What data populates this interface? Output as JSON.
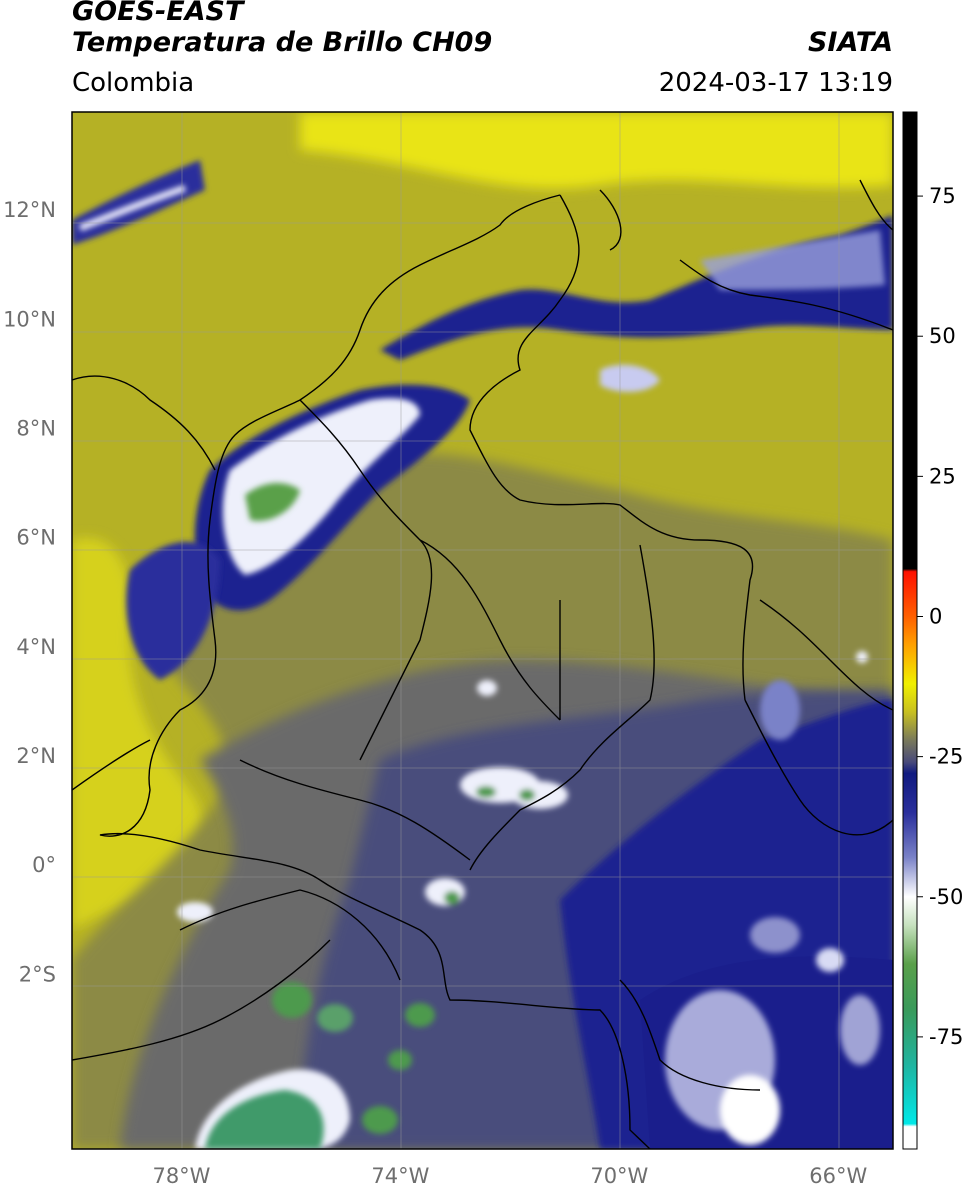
{
  "header": {
    "satellite": "GOES-EAST",
    "product": "Temperatura de Brillo CH09",
    "institution": "SIATA",
    "region": "Colombia",
    "datetime": "2024-03-17 13:19"
  },
  "map": {
    "lat_range": [
      -5.2,
      13.8
    ],
    "lon_range": [
      -80,
      -65
    ],
    "lat_ticks": [
      {
        "value": 12,
        "label": "12°N"
      },
      {
        "value": 10,
        "label": "10°N"
      },
      {
        "value": 8,
        "label": "8°N"
      },
      {
        "value": 6,
        "label": "6°N"
      },
      {
        "value": 4,
        "label": "4°N"
      },
      {
        "value": 2,
        "label": "2°N"
      },
      {
        "value": 0,
        "label": "0°"
      },
      {
        "value": -2,
        "label": "2°S"
      }
    ],
    "lon_ticks": [
      {
        "value": -78,
        "label": "78°W"
      },
      {
        "value": -74,
        "label": "74°W"
      },
      {
        "value": -70,
        "label": "70°W"
      },
      {
        "value": -66,
        "label": "66°W"
      }
    ],
    "gridlines": true,
    "colors": {
      "warm_background": "#b5b125",
      "coast_band": "#d4cf1e",
      "north_yellow": "#f2ee0a",
      "mid_olive": "#8a8a3e",
      "grey": "#6a6a68",
      "blue_grey": "#4a4f7a",
      "deep_blue": "#1e2390",
      "white": "#f4f4fb",
      "green": "#4e9a4e",
      "boundaries": "#000000"
    }
  },
  "colorbar": {
    "range": [
      -95,
      90
    ],
    "ticks": [
      {
        "value": 75,
        "label": "75"
      },
      {
        "value": 50,
        "label": "50"
      },
      {
        "value": 25,
        "label": "25"
      },
      {
        "value": 0,
        "label": "0"
      },
      {
        "value": -25,
        "label": "-25"
      },
      {
        "value": -50,
        "label": "-50"
      },
      {
        "value": -75,
        "label": "-75"
      }
    ],
    "stops": [
      {
        "value": -95,
        "color": "#ffffff"
      },
      {
        "value": -91,
        "color": "#ffffff"
      },
      {
        "value": -90.5,
        "color": "#00e8e8"
      },
      {
        "value": -80,
        "color": "#20b4a0"
      },
      {
        "value": -70,
        "color": "#3a9a5a"
      },
      {
        "value": -62,
        "color": "#5aa04a"
      },
      {
        "value": -55,
        "color": "#c8e2c0"
      },
      {
        "value": -50,
        "color": "#ffffff"
      },
      {
        "value": -43,
        "color": "#7a82c8"
      },
      {
        "value": -35,
        "color": "#2a2f9c"
      },
      {
        "value": -28,
        "color": "#101a80"
      },
      {
        "value": -26,
        "color": "#48497a"
      },
      {
        "value": -22,
        "color": "#7a7a5a"
      },
      {
        "value": -17,
        "color": "#c8c020"
      },
      {
        "value": -12,
        "color": "#f0f000"
      },
      {
        "value": -5,
        "color": "#ffa000"
      },
      {
        "value": 0,
        "color": "#ff6000"
      },
      {
        "value": 8,
        "color": "#ff1000"
      },
      {
        "value": 8.5,
        "color": "#000000"
      },
      {
        "value": 90,
        "color": "#000000"
      }
    ]
  }
}
